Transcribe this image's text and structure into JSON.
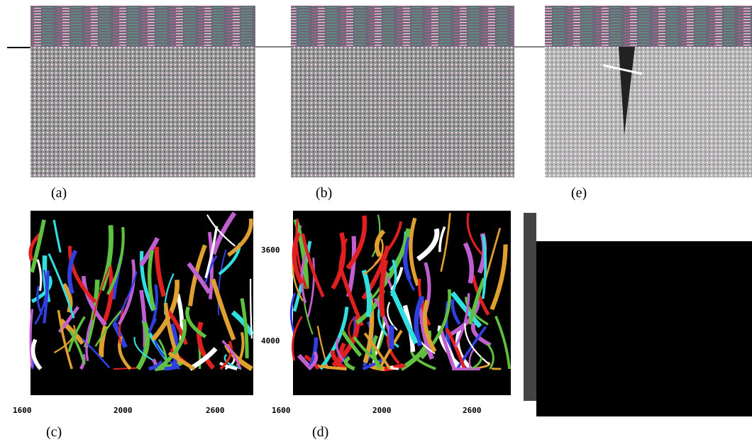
{
  "panels": {
    "a": "(a)",
    "b": "(b)",
    "e": "(e)",
    "c": "(c)",
    "d": "(d)"
  },
  "axes": {
    "c": {
      "x_ticks": [
        "1600",
        "2000",
        "2600"
      ]
    },
    "d": {
      "x_ticks": [
        "1600",
        "2000",
        "2600"
      ],
      "y_ticks": [
        "3600",
        "4000"
      ]
    }
  }
}
